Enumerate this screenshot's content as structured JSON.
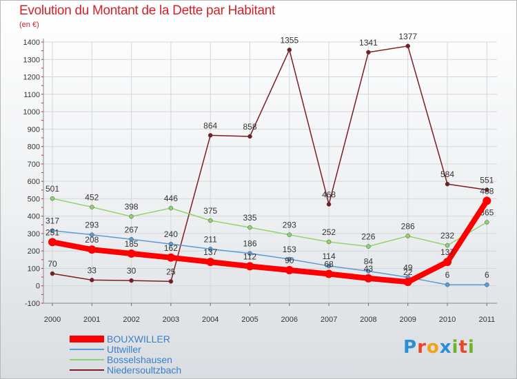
{
  "chart_data": {
    "type": "line",
    "title": "Evolution du Montant de la Dette par Habitant",
    "subtitle": "(en €)",
    "x": [
      "2000",
      "2001",
      "2002",
      "2003",
      "2004",
      "2005",
      "2006",
      "2007",
      "2008",
      "2009",
      "2010",
      "2011"
    ],
    "ylim": [
      -100,
      1400
    ],
    "yticks": [
      -100,
      0,
      100,
      200,
      300,
      400,
      500,
      600,
      700,
      800,
      900,
      1000,
      1100,
      1200,
      1300,
      1400
    ],
    "grid": true,
    "legend_position": "bottom-left",
    "series": [
      {
        "name": "Niedersoultzbach",
        "color": "#7a1c22",
        "values": [
          70,
          33,
          30,
          25,
          864,
          858,
          1355,
          468,
          1341,
          1377,
          584,
          551
        ]
      },
      {
        "name": "Bosselshausen",
        "color": "#8fd46a",
        "values": [
          501,
          452,
          398,
          446,
          375,
          335,
          293,
          252,
          226,
          286,
          232,
          365
        ]
      },
      {
        "name": "Uttwiller",
        "color": "#5a9bd5",
        "values": [
          317,
          293,
          267,
          240,
          211,
          186,
          153,
          114,
          84,
          49,
          6,
          6
        ]
      },
      {
        "name": "BOUXWILLER",
        "color": "#ff0000",
        "values": [
          251,
          208,
          185,
          162,
          137,
          112,
          90,
          68,
          43,
          22,
          137,
          488
        ]
      }
    ]
  },
  "legend": {
    "items": [
      {
        "label": "BOUXWILLER",
        "color": "#ff0000"
      },
      {
        "label": "Uttwiller",
        "color": "#5a9bd5"
      },
      {
        "label": "Bosselshausen",
        "color": "#8fd46a"
      },
      {
        "label": "Niedersoultzbach",
        "color": "#7a1c22"
      }
    ]
  },
  "logo": {
    "letters": [
      "P",
      "r",
      "o",
      "x",
      "i",
      "t",
      "i"
    ],
    "colors": [
      "#2b8fd8",
      "#e8472a",
      "#f3a21a",
      "#2b8fd8",
      "#6bb42a",
      "#e8472a",
      "#6bb42a"
    ]
  }
}
